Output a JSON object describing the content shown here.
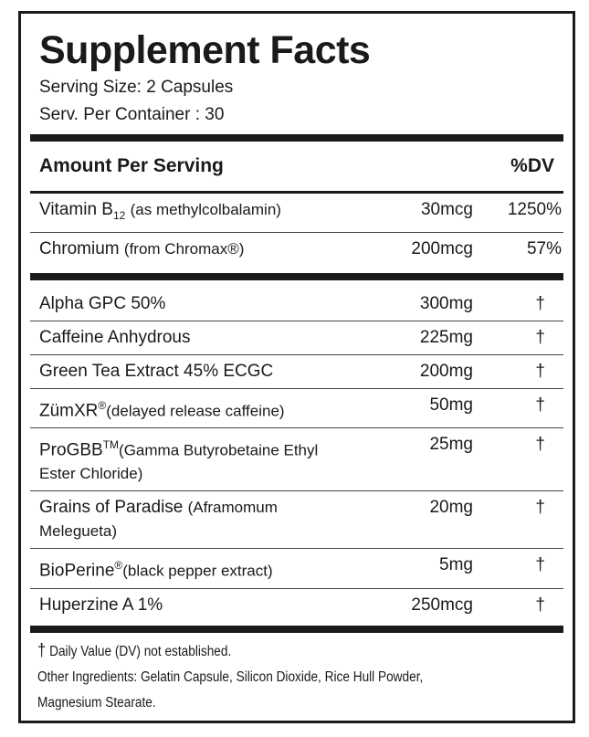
{
  "title": "Supplement Facts",
  "serving_size": "Serving Size: 2 Capsules",
  "servings_per_container": "Serv. Per Container : 30",
  "header": {
    "amount": "Amount Per Serving",
    "dv": "%DV"
  },
  "vitamins": [
    {
      "name": "Vitamin B",
      "sub": "12",
      "detail": "(as methylcolbalamin)",
      "amount": "30mcg",
      "dv": "1250%"
    },
    {
      "name": "Chromium",
      "detail": "(from Chromax®)",
      "amount": "200mcg",
      "dv": "57%"
    }
  ],
  "ingredients": [
    {
      "name": "Alpha GPC 50%",
      "amount": "300mg",
      "dv": "†"
    },
    {
      "name": "Caffeine Anhydrous",
      "amount": "225mg",
      "dv": "†"
    },
    {
      "name": "Green Tea Extract 45% ECGC",
      "amount": "200mg",
      "dv": "†"
    },
    {
      "name": "ZümXR",
      "sup": "®",
      "detail": "(delayed release caffeine)",
      "amount": "50mg",
      "dv": "†"
    },
    {
      "name": "ProGBB",
      "sup": "TM",
      "detail": "(Gamma Butyrobetaine Ethyl Ester Chloride)",
      "amount": "25mg",
      "dv": "†"
    },
    {
      "name": "Grains of Paradise",
      "detail": "(Aframomum Melegueta)",
      "amount": "20mg",
      "dv": "†"
    },
    {
      "name": "BioPerine",
      "sup": "®",
      "detail": "(black pepper extract)",
      "amount": "5mg",
      "dv": "†"
    },
    {
      "name": "Huperzine A 1%",
      "amount": "250mcg",
      "dv": "†"
    }
  ],
  "footnote": {
    "symbol": "†",
    "text": "Daily Value (DV) not established."
  },
  "other_ingredients": "Other Ingredients: Gelatin Capsule, Silicon Dioxide, Rice Hull Powder, Magnesium Stearate."
}
